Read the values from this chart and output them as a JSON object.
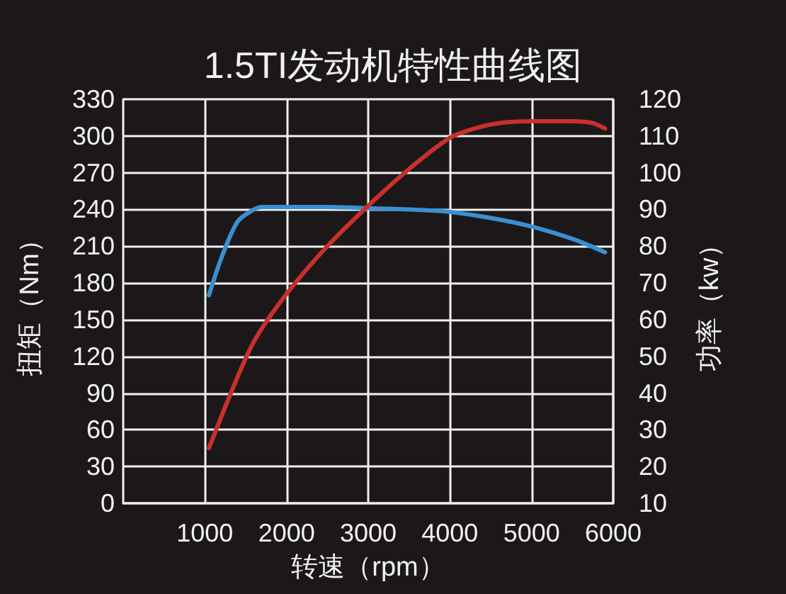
{
  "chart_data": {
    "type": "line",
    "title": "1.5TI发动机特性曲线图",
    "xlabel": "转速（rpm）",
    "ylabel": "扭矩（Nm）",
    "y2label": "功率（kw）",
    "xlim": [
      0,
      6000
    ],
    "xticks": [
      1000,
      2000,
      3000,
      4000,
      5000,
      6000
    ],
    "ylim": [
      0,
      330
    ],
    "yticks": [
      0,
      30,
      60,
      90,
      120,
      150,
      180,
      210,
      240,
      270,
      300,
      330
    ],
    "y2lim": [
      10,
      120
    ],
    "y2ticks": [
      10,
      20,
      30,
      40,
      50,
      60,
      70,
      80,
      90,
      100,
      110,
      120
    ],
    "grid": true,
    "marker": "none",
    "line_style": "solid",
    "series": [
      {
        "color": "#3a8fd0",
        "x": [
          1050,
          1200,
          1400,
          1600,
          1700,
          2000,
          2500,
          3000,
          3500,
          4000,
          4500,
          5000,
          5500,
          5900
        ],
        "values": [
          170,
          200,
          230,
          240,
          242,
          242,
          242,
          241,
          240,
          238,
          233,
          226,
          216,
          205
        ]
      },
      {
        "color": "#c8302c",
        "axis": "y2",
        "x": [
          1050,
          1300,
          1600,
          2000,
          2500,
          3000,
          3500,
          4000,
          4300,
          4600,
          5000,
          5500,
          5750,
          5900
        ],
        "values": [
          25,
          39,
          54,
          67,
          80,
          91,
          101,
          109.5,
          112,
          113.5,
          114,
          114,
          113.5,
          112
        ]
      }
    ]
  }
}
